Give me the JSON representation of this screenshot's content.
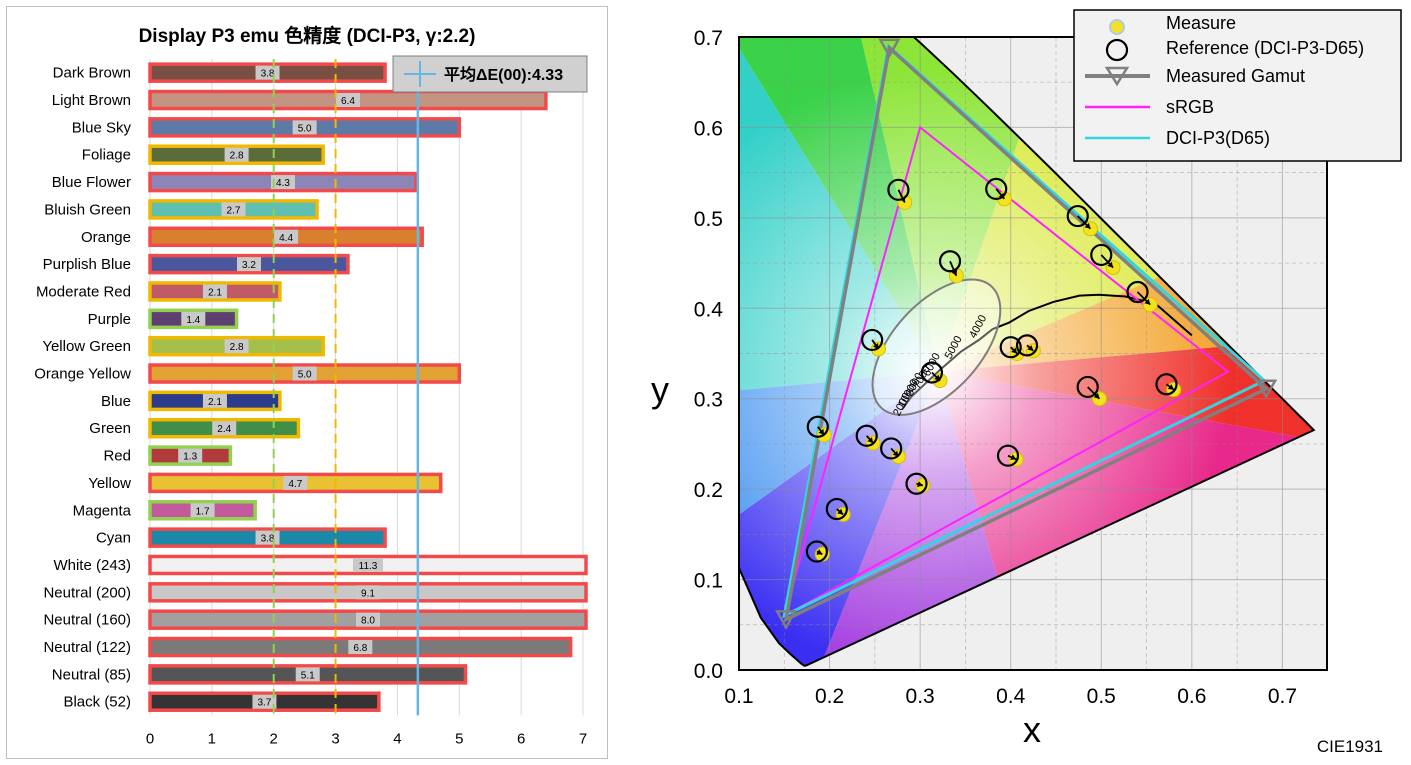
{
  "chart_data": [
    {
      "type": "bar",
      "orientation": "horizontal",
      "title": "Display P3 emu 色精度 (DCI-P3, γ:2.2)",
      "xlim": [
        0,
        7
      ],
      "x_ticks": [
        "0",
        "1",
        "2",
        "3",
        "4",
        "5",
        "6",
        "7"
      ],
      "categories": [
        "Dark Brown",
        "Light Brown",
        "Blue Sky",
        "Foliage",
        "Blue Flower",
        "Bluish Green",
        "Orange",
        "Purplish Blue",
        "Moderate Red",
        "Purple",
        "Yellow Green",
        "Orange Yellow",
        "Blue",
        "Green",
        "Red",
        "Yellow",
        "Magenta",
        "Cyan",
        "White (243)",
        "Neutral (200)",
        "Neutral (160)",
        "Neutral (122)",
        "Neutral (85)",
        "Black (52)"
      ],
      "values": [
        3.8,
        6.4,
        5.0,
        2.8,
        4.3,
        2.7,
        4.4,
        3.2,
        2.1,
        1.4,
        2.8,
        5.0,
        2.1,
        2.4,
        1.3,
        4.7,
        1.7,
        3.8,
        11.3,
        9.1,
        8.0,
        6.8,
        5.1,
        3.7
      ],
      "value_labels": [
        "3.8",
        "6.4",
        "5.0",
        "2.8",
        "4.3",
        "2.7",
        "4.4",
        "3.2",
        "2.1",
        "1.4",
        "2.8",
        "5.0",
        "2.1",
        "2.4",
        "1.3",
        "4.7",
        "1.7",
        "3.8",
        "11.3",
        "9.1",
        "8.0",
        "6.8",
        "5.1",
        "3.7"
      ],
      "bar_colors": [
        "#7a4f43",
        "#c49483",
        "#5c7aa8",
        "#5b6b3a",
        "#8c86b8",
        "#5fbfb2",
        "#d9802e",
        "#4b579c",
        "#c05a67",
        "#5e3f72",
        "#a5c04a",
        "#e2a233",
        "#2c3b8c",
        "#3f8f48",
        "#b03a3c",
        "#e9c233",
        "#c25a9d",
        "#1a88a6",
        "#f0f0f0",
        "#c8c8c8",
        "#a0a0a0",
        "#7a7a7a",
        "#555555",
        "#343434"
      ],
      "outline_colors": [
        "#f24a4a",
        "#f24a4a",
        "#f24a4a",
        "#f0b800",
        "#f24a4a",
        "#f0b800",
        "#f24a4a",
        "#f24a4a",
        "#f0b800",
        "#92d050",
        "#f0b800",
        "#f24a4a",
        "#f0b800",
        "#f0b800",
        "#92d050",
        "#f24a4a",
        "#92d050",
        "#f24a4a",
        "#f24a4a",
        "#f24a4a",
        "#f24a4a",
        "#f24a4a",
        "#f24a4a",
        "#f24a4a"
      ],
      "reference_lines": [
        {
          "value": 2,
          "color": "#92d050",
          "style": "dashed"
        },
        {
          "value": 3,
          "color": "#f0b800",
          "style": "dashed"
        },
        {
          "value": 4.33,
          "color": "#62b7e8",
          "style": "solid"
        }
      ],
      "legend": {
        "label": "平均ΔE(00):4.33",
        "position": "top-right"
      },
      "grid": true
    },
    {
      "type": "scatter",
      "title": "",
      "xlabel": "x",
      "ylabel": "y",
      "xlim": [
        0.1,
        0.75
      ],
      "ylim": [
        0.0,
        0.7
      ],
      "x_ticks": [
        "0.1",
        "0.2",
        "0.3",
        "0.4",
        "0.5",
        "0.6",
        "0.7"
      ],
      "y_ticks": [
        "0.0",
        "0.1",
        "0.2",
        "0.3",
        "0.4",
        "0.5",
        "0.6",
        "0.7"
      ],
      "grid": true,
      "corner_label": "CIE1931",
      "legend": {
        "position": "top-right",
        "entries": [
          "Measure",
          "Reference (DCI-P3-D65)",
          "Measured Gamut",
          "sRGB",
          "DCI-P3(D65)"
        ]
      },
      "series": [
        {
          "name": "Measure",
          "points": [
            [
              0.488,
              0.488
            ],
            [
              0.513,
              0.445
            ],
            [
              0.554,
              0.404
            ],
            [
              0.58,
              0.31
            ],
            [
              0.498,
              0.3
            ],
            [
              0.407,
              0.35
            ],
            [
              0.425,
              0.353
            ],
            [
              0.283,
              0.517
            ],
            [
              0.393,
              0.521
            ],
            [
              0.34,
              0.436
            ],
            [
              0.254,
              0.355
            ],
            [
              0.322,
              0.32
            ],
            [
              0.194,
              0.26
            ],
            [
              0.248,
              0.251
            ],
            [
              0.276,
              0.236
            ],
            [
              0.406,
              0.233
            ],
            [
              0.303,
              0.204
            ],
            [
              0.215,
              0.172
            ],
            [
              0.192,
              0.128
            ]
          ]
        },
        {
          "name": "Reference (DCI-P3-D65)",
          "points": [
            [
              0.474,
              0.502
            ],
            [
              0.5,
              0.459
            ],
            [
              0.54,
              0.418
            ],
            [
              0.572,
              0.316
            ],
            [
              0.485,
              0.313
            ],
            [
              0.4,
              0.357
            ],
            [
              0.418,
              0.359
            ],
            [
              0.276,
              0.531
            ],
            [
              0.384,
              0.532
            ],
            [
              0.333,
              0.452
            ],
            [
              0.247,
              0.365
            ],
            [
              0.313,
              0.329
            ],
            [
              0.187,
              0.269
            ],
            [
              0.241,
              0.259
            ],
            [
              0.268,
              0.245
            ],
            [
              0.397,
              0.237
            ],
            [
              0.296,
              0.206
            ],
            [
              0.208,
              0.178
            ],
            [
              0.186,
              0.131
            ]
          ]
        },
        {
          "name": "Measured Gamut",
          "points": [
            [
              0.266,
              0.688
            ],
            [
              0.682,
              0.311
            ],
            [
              0.152,
              0.056
            ]
          ]
        },
        {
          "name": "sRGB",
          "points": [
            [
              0.64,
              0.33
            ],
            [
              0.3,
              0.6
            ],
            [
              0.15,
              0.06
            ]
          ]
        },
        {
          "name": "DCI-P3(D65)",
          "points": [
            [
              0.68,
              0.32
            ],
            [
              0.265,
              0.69
            ],
            [
              0.15,
              0.06
            ]
          ]
        }
      ],
      "cct_labels": [
        "2000",
        "10000",
        "8000",
        "7000",
        "6000",
        "5000",
        "4000"
      ]
    }
  ]
}
